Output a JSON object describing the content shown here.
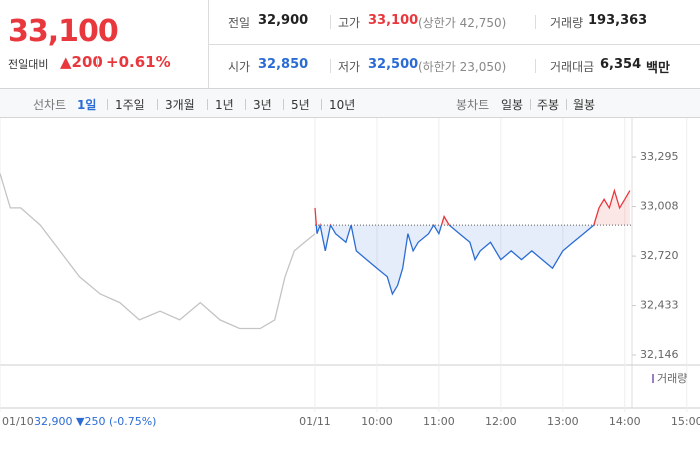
{
  "quote": {
    "price": "33,100",
    "change_label": "전일대비",
    "change": "▲200",
    "change_rate": "+0.61%"
  },
  "stats": [
    {
      "label": "전일",
      "value": "32,900",
      "color": "#222222"
    },
    {
      "label": "고가",
      "value": "33,100",
      "note": "(상한가 42,750)",
      "color": "#e8383d"
    },
    {
      "label": "거래량",
      "value": "193,363",
      "color": "#222222"
    },
    {
      "label": "시가",
      "value": "32,850",
      "color": "#2b6cd4"
    },
    {
      "label": "저가",
      "value": "32,500",
      "note": "(하한가 23,050)",
      "color": "#2b6cd4"
    },
    {
      "label": "거래대금",
      "value": "6,354",
      "unit": "백만",
      "color": "#222222"
    }
  ],
  "tabs": {
    "line_label": "선차트",
    "periods": [
      "1일",
      "1주일",
      "3개월",
      "1년",
      "3년",
      "5년",
      "10년"
    ],
    "active": 0,
    "candle_label": "봉차트",
    "candles": [
      "일봉",
      "주봉",
      "월봉"
    ]
  },
  "chart_data": {
    "type": "line",
    "xlim": [
      85,
      697
    ],
    "ylim": [
      32088,
      33481
    ],
    "yticks": [
      {
        "value": 33295,
        "label": "33,295"
      },
      {
        "value": 33008,
        "label": "33,008"
      },
      {
        "value": 32720,
        "label": "32,720"
      },
      {
        "value": 32433,
        "label": "32,433"
      },
      {
        "value": 32146,
        "label": "32,146"
      }
    ],
    "xticks": [
      {
        "value": 85,
        "label": "01/10"
      },
      {
        "value": 390,
        "label": "01/11"
      },
      {
        "value": 450,
        "label": "10:00"
      },
      {
        "value": 510,
        "label": "11:00"
      },
      {
        "value": 570,
        "label": "12:00"
      },
      {
        "value": 630,
        "label": "13:00"
      },
      {
        "value": 690,
        "label": "14:00"
      },
      {
        "value": 750,
        "label": "15:00"
      }
    ],
    "prev_close_note": "32,900 ▼250 (-0.75%)",
    "base": 32900,
    "volume_label": "거래량",
    "series": [
      {
        "color": "#c4c4c4",
        "x": [
          85,
          95,
          105,
          124,
          143,
          162,
          182,
          201,
          220,
          240,
          259,
          279,
          298,
          317,
          337,
          351,
          361,
          370,
          380,
          390
        ],
        "values": [
          33200,
          33000,
          33000,
          32900,
          32750,
          32600,
          32500,
          32450,
          32350,
          32400,
          32350,
          32450,
          32350,
          32300,
          32300,
          32350,
          32600,
          32750,
          32800,
          32850
        ]
      },
      {
        "color_up": "#e8383d",
        "color_down": "#2b6cd4",
        "x": [
          390,
          392,
          395,
          400,
          405,
          410,
          420,
          425,
          430,
          440,
          450,
          460,
          465,
          470,
          475,
          480,
          485,
          490,
          500,
          505,
          510,
          515,
          520,
          530,
          540,
          545,
          550,
          560,
          570,
          580,
          590,
          600,
          610,
          620,
          630,
          640,
          650,
          660,
          665,
          670,
          675,
          680,
          685,
          690,
          695
        ],
        "values": [
          33000,
          32850,
          32900,
          32750,
          32900,
          32850,
          32800,
          32900,
          32750,
          32700,
          32650,
          32600,
          32500,
          32550,
          32650,
          32850,
          32750,
          32800,
          32850,
          32900,
          32850,
          32950,
          32900,
          32850,
          32800,
          32700,
          32750,
          32800,
          32700,
          32750,
          32700,
          32750,
          32700,
          32650,
          32750,
          32800,
          32850,
          32900,
          33000,
          33050,
          33000,
          33100,
          33000,
          33050,
          33100
        ]
      }
    ]
  }
}
